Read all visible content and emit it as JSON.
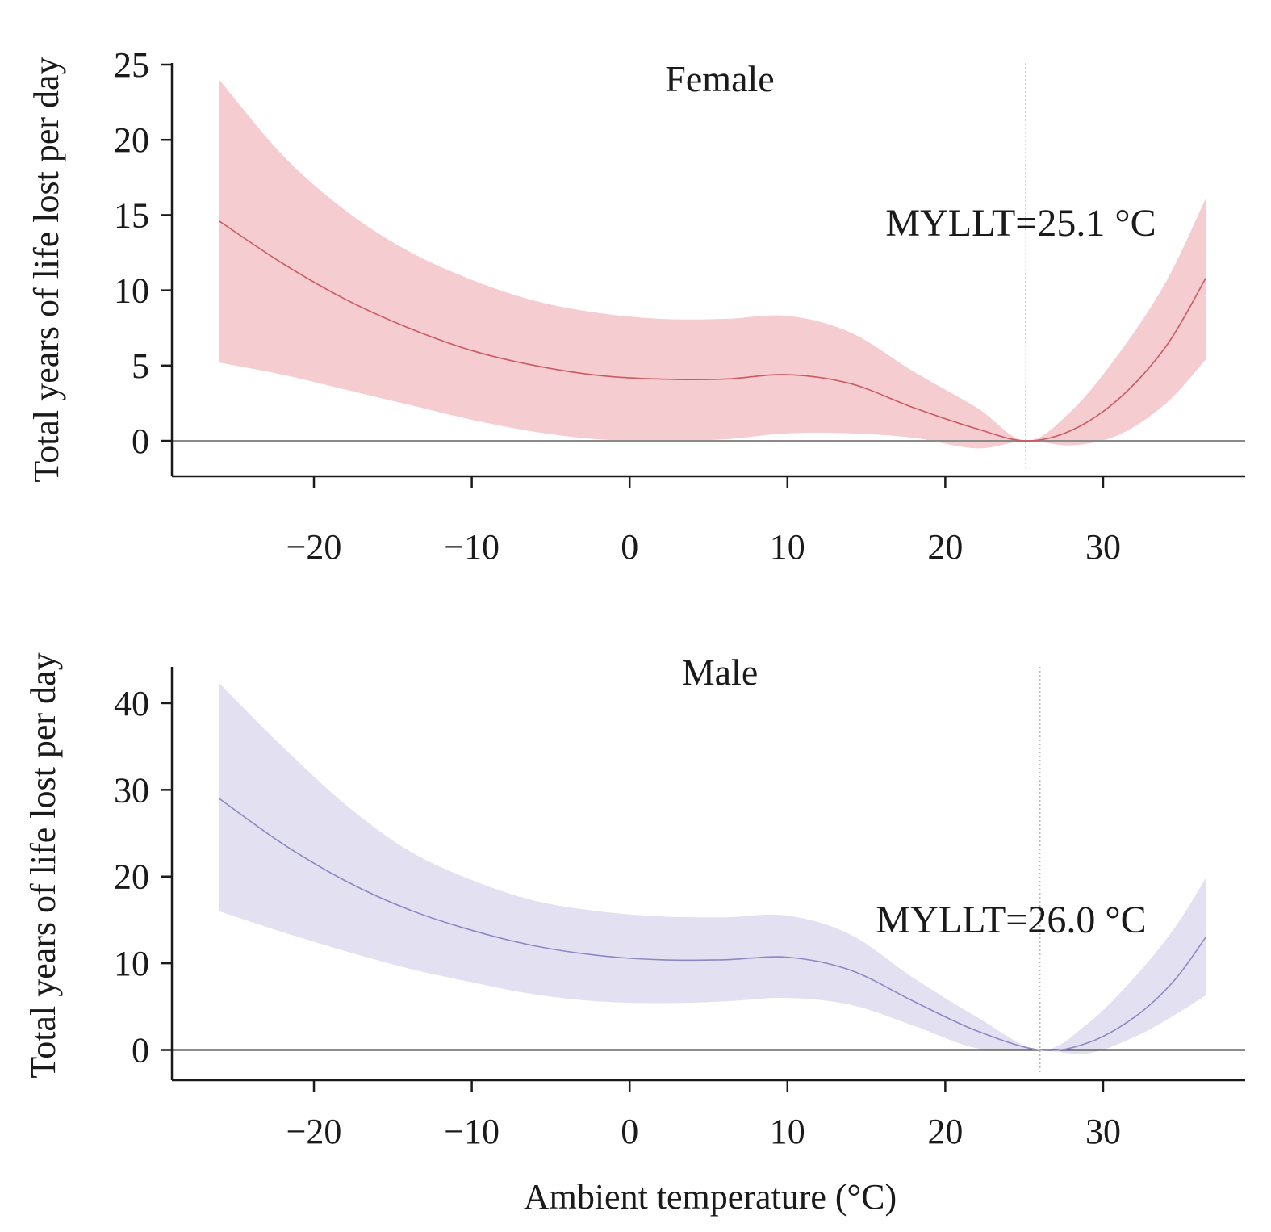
{
  "x_axis_title": "Ambient temperature (°C)",
  "colors": {
    "female_band": "#f5ccd0",
    "female_line": "#cc5a62",
    "male_band": "#e3e1f1",
    "male_line": "#8c88c4",
    "axis": "#1a1a1a",
    "zero_line_female": "#8a8a8a",
    "zero_line_male": "#1a1a1a",
    "ref_line": "#b8b8b8"
  },
  "chart_data": [
    {
      "type": "line",
      "title": "Female",
      "ylabel": "Total years of life lost per day",
      "xlabel": "",
      "xlim": [
        -29,
        39
      ],
      "ylim": [
        -1.5,
        25
      ],
      "xticks": [
        -20,
        -10,
        0,
        10,
        20,
        30
      ],
      "xtick_labels": [
        "−20",
        "−10",
        "0",
        "10",
        "20",
        "30"
      ],
      "yticks": [
        0,
        5,
        10,
        15,
        20,
        25
      ],
      "ytick_labels": [
        "0",
        "5",
        "10",
        "15",
        "20",
        "25"
      ],
      "reference_x": 25.1,
      "annotation": "MYLLT=25.1 °C",
      "grid": false,
      "series": [
        {
          "x": [
            -26,
            -22,
            -18,
            -14,
            -10,
            -6,
            -2,
            2,
            6,
            10,
            14,
            18,
            22,
            25.1,
            28,
            31,
            34,
            36.5
          ],
          "y": [
            14.6,
            11.8,
            9.4,
            7.5,
            6.0,
            5.0,
            4.35,
            4.1,
            4.1,
            4.4,
            3.8,
            2.2,
            0.8,
            0,
            0.7,
            2.8,
            6.3,
            10.8
          ],
          "lower": [
            5.2,
            4.4,
            3.4,
            2.4,
            1.4,
            0.6,
            0.1,
            0.0,
            0.1,
            0.5,
            0.5,
            0.2,
            -0.5,
            0,
            -0.3,
            0.4,
            2.5,
            5.4
          ],
          "upper": [
            24.0,
            19.0,
            15.3,
            12.6,
            10.7,
            9.3,
            8.5,
            8.1,
            8.1,
            8.3,
            7.2,
            4.6,
            2.2,
            0,
            2.0,
            5.8,
            10.6,
            16.1
          ]
        }
      ]
    },
    {
      "type": "line",
      "title": "Male",
      "ylabel": "Total years of life lost per day",
      "xlabel": "Ambient temperature (°C)",
      "xlim": [
        -29,
        39
      ],
      "ylim": [
        -2,
        44
      ],
      "xticks": [
        -20,
        -10,
        0,
        10,
        20,
        30
      ],
      "xtick_labels": [
        "−20",
        "−10",
        "0",
        "10",
        "20",
        "30"
      ],
      "yticks": [
        0,
        10,
        20,
        30,
        40
      ],
      "ytick_labels": [
        "0",
        "10",
        "20",
        "30",
        "40"
      ],
      "reference_x": 26.0,
      "annotation": "MYLLT=26.0 °C",
      "grid": false,
      "series": [
        {
          "x": [
            -26,
            -22,
            -18,
            -14,
            -10,
            -6,
            -2,
            2,
            6,
            10,
            14,
            18,
            22,
            26.0,
            29,
            32,
            34.5,
            36.5
          ],
          "y": [
            29.0,
            23.8,
            19.5,
            16.2,
            13.8,
            12.0,
            10.9,
            10.4,
            10.4,
            10.7,
            9.2,
            5.6,
            2.2,
            0,
            0.8,
            3.8,
            8.0,
            13.0
          ],
          "lower": [
            16.0,
            13.6,
            11.4,
            9.4,
            7.8,
            6.4,
            5.6,
            5.4,
            5.6,
            6.0,
            5.2,
            2.8,
            0.2,
            0,
            -0.4,
            1.5,
            4.0,
            6.3
          ],
          "upper": [
            42.3,
            35.0,
            28.3,
            23.0,
            19.6,
            17.2,
            16.0,
            15.4,
            15.3,
            15.5,
            13.3,
            8.3,
            3.8,
            0,
            3.0,
            8.4,
            14.0,
            19.8
          ]
        }
      ]
    }
  ]
}
